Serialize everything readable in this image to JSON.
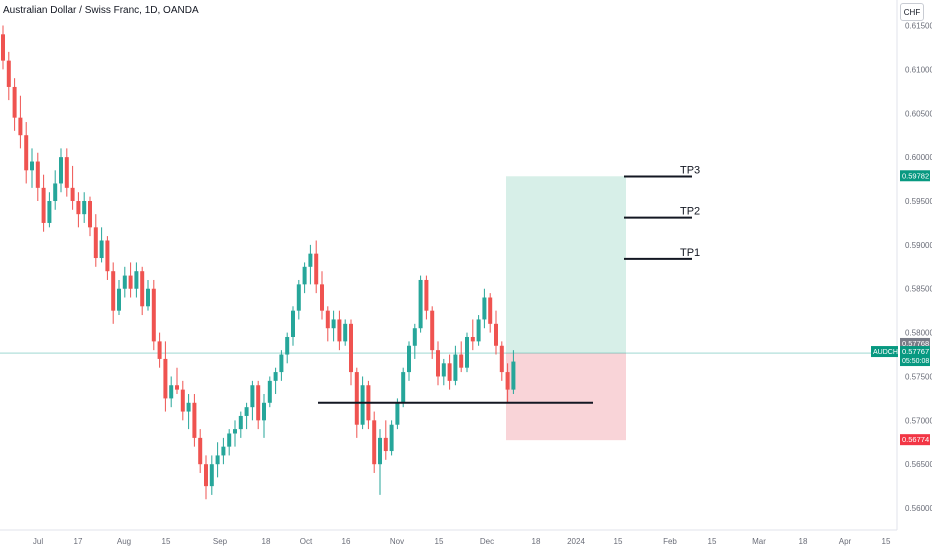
{
  "title": "Australian Dollar / Swiss Franc, 1D, OANDA",
  "currency_button": "CHF",
  "colors": {
    "up": "#26a69a",
    "down": "#ef5350",
    "profit_zone": "#d7efe8",
    "loss_zone": "#f9d4d8",
    "price_line": "#26a69a",
    "tag_green": "#089981",
    "tag_red": "#f23645",
    "tag_gray": "#787b86",
    "axis_text": "#6a6d78"
  },
  "chart_data": {
    "type": "candlestick",
    "y_axis": {
      "range": [
        0.5575,
        0.617
      ],
      "ticks": [
        "0.61500",
        "0.61000",
        "0.60500",
        "0.60000",
        "0.59500",
        "0.59000",
        "0.58500",
        "0.58000",
        "0.57500",
        "0.57000",
        "0.56500",
        "0.56000"
      ]
    },
    "x_axis": {
      "labels": [
        "Jul",
        "17",
        "Aug",
        "15",
        "Sep",
        "18",
        "Oct",
        "16",
        "Nov",
        "15",
        "Dec",
        "18",
        "2024",
        "15",
        "Feb",
        "15",
        "Mar",
        "18",
        "Apr",
        "15"
      ]
    },
    "price_tags": [
      {
        "value": "0.59782",
        "style": "green"
      },
      {
        "value": "0.57768",
        "style": "gray"
      },
      {
        "symbol": "AUDCHF",
        "value": "0.57767",
        "time": "05:50:08",
        "style": "green"
      },
      {
        "value": "0.56774",
        "style": "red"
      }
    ],
    "position": {
      "entry": 0.57767,
      "target": 0.59782,
      "stop": 0.56774
    },
    "levels": [
      {
        "label": "TP1",
        "value": 0.5884
      },
      {
        "label": "TP2",
        "value": 0.5931
      },
      {
        "label": "TP3",
        "value": 0.5978
      },
      {
        "label": "",
        "value": 0.572
      }
    ],
    "candles": [
      [
        0.614,
        0.615,
        0.61,
        0.611
      ],
      [
        0.611,
        0.612,
        0.6065,
        0.608
      ],
      [
        0.608,
        0.609,
        0.603,
        0.6045
      ],
      [
        0.6045,
        0.607,
        0.601,
        0.6025
      ],
      [
        0.6025,
        0.604,
        0.597,
        0.5985
      ],
      [
        0.5985,
        0.601,
        0.5965,
        0.5995
      ],
      [
        0.5995,
        0.6005,
        0.595,
        0.5965
      ],
      [
        0.5965,
        0.598,
        0.5915,
        0.5925
      ],
      [
        0.5925,
        0.596,
        0.592,
        0.595
      ],
      [
        0.595,
        0.5985,
        0.594,
        0.597
      ],
      [
        0.597,
        0.601,
        0.596,
        0.6
      ],
      [
        0.6,
        0.601,
        0.5955,
        0.5965
      ],
      [
        0.5965,
        0.599,
        0.594,
        0.595
      ],
      [
        0.595,
        0.596,
        0.592,
        0.5935
      ],
      [
        0.5935,
        0.596,
        0.5925,
        0.595
      ],
      [
        0.595,
        0.5955,
        0.591,
        0.592
      ],
      [
        0.592,
        0.5935,
        0.5875,
        0.5885
      ],
      [
        0.5885,
        0.592,
        0.588,
        0.5905
      ],
      [
        0.5905,
        0.591,
        0.586,
        0.587
      ],
      [
        0.587,
        0.588,
        0.581,
        0.5825
      ],
      [
        0.5825,
        0.586,
        0.582,
        0.585
      ],
      [
        0.585,
        0.5875,
        0.584,
        0.5865
      ],
      [
        0.5865,
        0.588,
        0.584,
        0.585
      ],
      [
        0.585,
        0.588,
        0.584,
        0.587
      ],
      [
        0.587,
        0.5875,
        0.582,
        0.583
      ],
      [
        0.583,
        0.586,
        0.5825,
        0.585
      ],
      [
        0.585,
        0.586,
        0.578,
        0.579
      ],
      [
        0.579,
        0.58,
        0.576,
        0.577
      ],
      [
        0.577,
        0.579,
        0.571,
        0.5725
      ],
      [
        0.5725,
        0.575,
        0.5715,
        0.574
      ],
      [
        0.574,
        0.576,
        0.573,
        0.5735
      ],
      [
        0.5735,
        0.5745,
        0.57,
        0.571
      ],
      [
        0.571,
        0.573,
        0.569,
        0.572
      ],
      [
        0.572,
        0.573,
        0.567,
        0.568
      ],
      [
        0.568,
        0.569,
        0.564,
        0.565
      ],
      [
        0.565,
        0.566,
        0.561,
        0.5625
      ],
      [
        0.5625,
        0.566,
        0.5615,
        0.565
      ],
      [
        0.565,
        0.5675,
        0.5635,
        0.566
      ],
      [
        0.566,
        0.568,
        0.565,
        0.567
      ],
      [
        0.567,
        0.569,
        0.566,
        0.5685
      ],
      [
        0.5685,
        0.57,
        0.567,
        0.569
      ],
      [
        0.569,
        0.571,
        0.568,
        0.5705
      ],
      [
        0.5705,
        0.572,
        0.569,
        0.5715
      ],
      [
        0.5715,
        0.5745,
        0.57,
        0.574
      ],
      [
        0.574,
        0.5745,
        0.569,
        0.57
      ],
      [
        0.57,
        0.573,
        0.568,
        0.572
      ],
      [
        0.572,
        0.575,
        0.5715,
        0.5745
      ],
      [
        0.5745,
        0.576,
        0.573,
        0.5755
      ],
      [
        0.5755,
        0.578,
        0.5745,
        0.5775
      ],
      [
        0.5775,
        0.58,
        0.5765,
        0.5795
      ],
      [
        0.5795,
        0.583,
        0.5785,
        0.5825
      ],
      [
        0.5825,
        0.586,
        0.5815,
        0.5855
      ],
      [
        0.5855,
        0.588,
        0.5845,
        0.5875
      ],
      [
        0.5875,
        0.59,
        0.5855,
        0.589
      ],
      [
        0.589,
        0.5905,
        0.5845,
        0.5855
      ],
      [
        0.5855,
        0.587,
        0.5815,
        0.5825
      ],
      [
        0.5825,
        0.583,
        0.579,
        0.5805
      ],
      [
        0.5805,
        0.5825,
        0.579,
        0.5815
      ],
      [
        0.5815,
        0.5825,
        0.578,
        0.579
      ],
      [
        0.579,
        0.5815,
        0.5785,
        0.581
      ],
      [
        0.581,
        0.5815,
        0.574,
        0.5755
      ],
      [
        0.5755,
        0.576,
        0.568,
        0.5695
      ],
      [
        0.5695,
        0.575,
        0.569,
        0.574
      ],
      [
        0.574,
        0.5745,
        0.569,
        0.57
      ],
      [
        0.57,
        0.571,
        0.564,
        0.565
      ],
      [
        0.565,
        0.569,
        0.5615,
        0.568
      ],
      [
        0.568,
        0.57,
        0.5655,
        0.5665
      ],
      [
        0.5665,
        0.57,
        0.566,
        0.5695
      ],
      [
        0.5695,
        0.5725,
        0.569,
        0.572
      ],
      [
        0.572,
        0.576,
        0.5715,
        0.5755
      ],
      [
        0.5755,
        0.579,
        0.5745,
        0.5785
      ],
      [
        0.5785,
        0.581,
        0.577,
        0.5805
      ],
      [
        0.5805,
        0.5865,
        0.58,
        0.586
      ],
      [
        0.586,
        0.5865,
        0.5815,
        0.5825
      ],
      [
        0.5825,
        0.583,
        0.577,
        0.578
      ],
      [
        0.578,
        0.579,
        0.574,
        0.575
      ],
      [
        0.575,
        0.577,
        0.574,
        0.5765
      ],
      [
        0.5765,
        0.5775,
        0.5735,
        0.5745
      ],
      [
        0.5745,
        0.5785,
        0.574,
        0.5775
      ],
      [
        0.5775,
        0.579,
        0.5755,
        0.576
      ],
      [
        0.576,
        0.58,
        0.5755,
        0.5795
      ],
      [
        0.5795,
        0.5815,
        0.578,
        0.579
      ],
      [
        0.579,
        0.582,
        0.5785,
        0.5815
      ],
      [
        0.5815,
        0.585,
        0.5805,
        0.584
      ],
      [
        0.584,
        0.5845,
        0.58,
        0.581
      ],
      [
        0.581,
        0.5825,
        0.5775,
        0.5785
      ],
      [
        0.5785,
        0.579,
        0.5745,
        0.5755
      ],
      [
        0.5755,
        0.5765,
        0.572,
        0.5735
      ],
      [
        0.5735,
        0.578,
        0.573,
        0.5767
      ]
    ]
  }
}
